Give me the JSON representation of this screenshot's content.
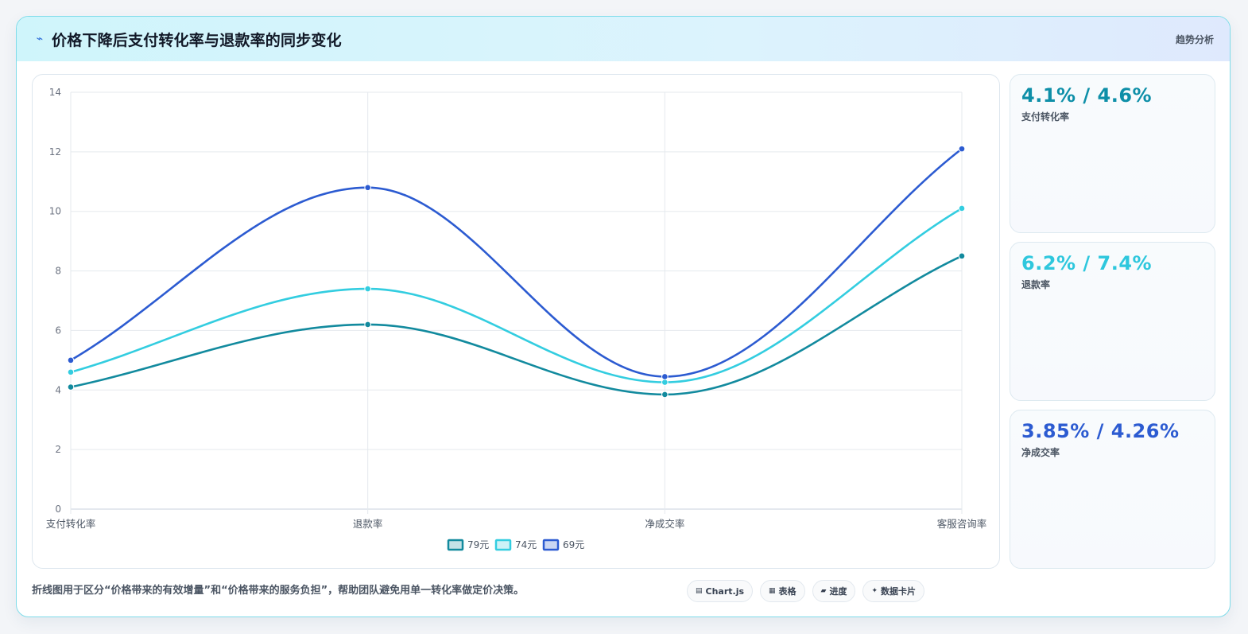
{
  "header": {
    "title": "价格下降后支付转化率与退款率的同步变化",
    "tag": "趋势分析"
  },
  "kpis": [
    {
      "value": "4.1% / 4.6%",
      "label": "支付转化率",
      "color": "#0e8fa8"
    },
    {
      "value": "6.2% / 7.4%",
      "label": "退款率",
      "color": "#2ec7dd"
    },
    {
      "value": "3.85% / 4.26%",
      "label": "净成交率",
      "color": "#2c5bd1"
    }
  ],
  "footer": {
    "note": "折线图用于区分“价格带来的有效增量”和“价格带来的服务负担”，帮助团队避免用单一转化率做定价决策。",
    "pills": [
      {
        "icon": "chart-icon",
        "glyph": "▤",
        "label": "Chart.js"
      },
      {
        "icon": "table-icon",
        "glyph": "▦",
        "label": "表格"
      },
      {
        "icon": "progress-icon",
        "glyph": "▰",
        "label": "进度"
      },
      {
        "icon": "sparkle-icon",
        "glyph": "✦",
        "label": "数据卡片"
      }
    ]
  },
  "chart_data": {
    "type": "line",
    "categories": [
      "支付转化率",
      "退款率",
      "净成交率",
      "客服咨询率"
    ],
    "series": [
      {
        "name": "79元",
        "values": [
          4.1,
          6.2,
          3.85,
          8.5
        ],
        "color": "#128a9e"
      },
      {
        "name": "74元",
        "values": [
          4.6,
          7.4,
          4.26,
          10.1
        ],
        "color": "#33cde0"
      },
      {
        "name": "69元",
        "values": [
          5.0,
          10.8,
          4.45,
          12.1
        ],
        "color": "#2c5bd1"
      }
    ],
    "ylim": [
      0,
      14
    ],
    "yticks": [
      0,
      2,
      4,
      6,
      8,
      10,
      12,
      14
    ],
    "grid": true,
    "legend": "bottom"
  }
}
